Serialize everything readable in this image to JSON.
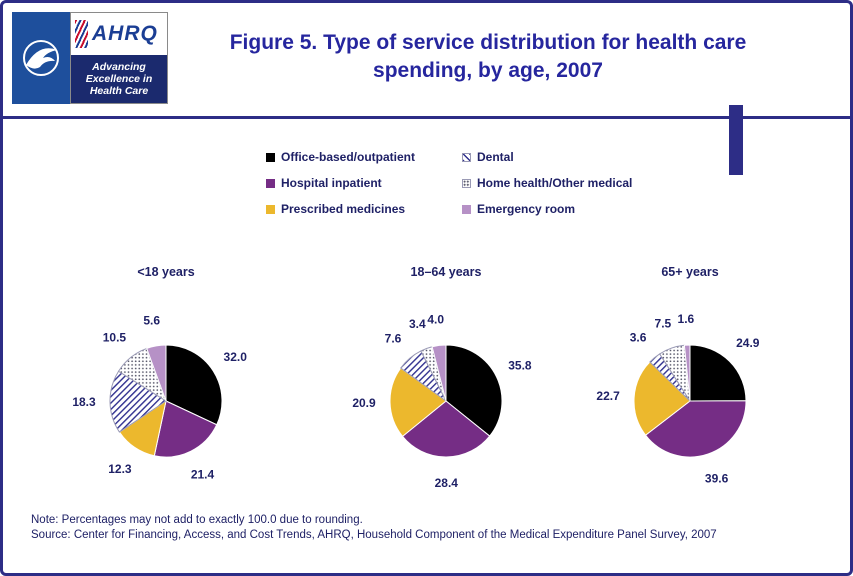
{
  "page": {
    "title_line1": "Figure 5. Type of service distribution for health care",
    "title_line2": "spending, by age, 2007"
  },
  "logo": {
    "ahrq": "AHRQ",
    "tagline": "Advancing Excellence in Health Care"
  },
  "legend": [
    {
      "key": "office",
      "label": "Office-based/outpatient"
    },
    {
      "key": "dental",
      "label": "Dental"
    },
    {
      "key": "hospital",
      "label": "Hospital inpatient"
    },
    {
      "key": "homehealth",
      "label": "Home health/Other medical"
    },
    {
      "key": "prescribed",
      "label": "Prescribed medicines"
    },
    {
      "key": "emergency",
      "label": "Emergency room"
    }
  ],
  "colors": {
    "office": "#000000",
    "hospital": "#752d85",
    "prescribed": "#ecb82d",
    "dental": "pattern:hatch",
    "homehealth": "pattern:dots",
    "emergency": "#b691c6",
    "pattern_line": "#30308f",
    "pattern_dot": "#5c5c6e",
    "accent": "#2d2d86",
    "text": "#1f2166"
  },
  "chart_data": {
    "type": "pie",
    "title": "Figure 5. Type of service distribution for health care spending, by age, 2007",
    "unit": "percent",
    "legend_position": "top",
    "value_label_format": "one_decimal",
    "slice_order": [
      "office",
      "hospital",
      "prescribed",
      "dental",
      "homehealth",
      "emergency"
    ],
    "slice_labels": [
      "Office-based/outpatient",
      "Hospital inpatient",
      "Prescribed medicines",
      "Dental",
      "Home health/Other medical",
      "Emergency room"
    ],
    "pies": [
      {
        "title": "<18 years",
        "values": [
          32.0,
          21.4,
          12.3,
          18.3,
          10.5,
          5.6
        ]
      },
      {
        "title": "18–64 years",
        "values": [
          35.8,
          28.4,
          20.9,
          7.6,
          3.4,
          4.0
        ]
      },
      {
        "title": "65+ years",
        "values": [
          24.9,
          39.6,
          22.7,
          3.6,
          7.5,
          1.6
        ]
      }
    ]
  },
  "footer": {
    "note": "Note: Percentages may not add to exactly 100.0 due to rounding.",
    "source": "Source: Center for Financing, Access, and Cost Trends, AHRQ, Household Component of the Medical Expenditure Panel Survey, 2007"
  }
}
